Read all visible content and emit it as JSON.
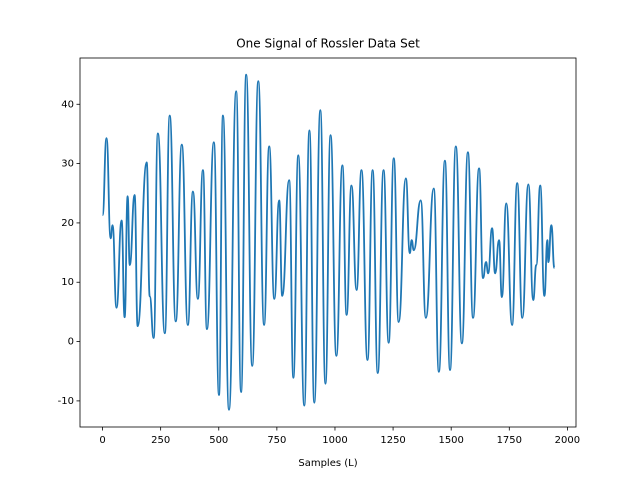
{
  "chart_data": {
    "type": "line",
    "title": "One Signal of Rossler Data Set",
    "x_label": "Samples (L)",
    "xlim": [
      -97,
      2037
    ],
    "xticks": [
      0,
      250,
      500,
      750,
      1000,
      1250,
      1500,
      1750,
      2000
    ],
    "ylim": [
      -14.4,
      47.8
    ],
    "yticks": [
      -10,
      0,
      10,
      20,
      30,
      40
    ],
    "series": [
      {
        "color": "#1f77b4",
        "x": [
          0,
          17,
          35,
          43,
          60,
          82,
          95,
          108,
          117,
          138,
          151,
          190,
          203,
          220,
          238,
          268,
          289,
          315,
          341,
          367,
          389,
          410,
          432,
          449,
          479,
          501,
          518,
          544,
          575,
          596,
          618,
          644,
          670,
          695,
          717,
          739,
          760,
          773,
          803,
          821,
          842,
          868,
          890,
          911,
          937,
          959,
          981,
          1006,
          1032,
          1050,
          1071,
          1093,
          1114,
          1140,
          1162,
          1184,
          1209,
          1231,
          1253,
          1274,
          1305,
          1322,
          1330,
          1339,
          1369,
          1391,
          1425,
          1447,
          1473,
          1495,
          1520,
          1546,
          1572,
          1594,
          1620,
          1637,
          1650,
          1659,
          1676,
          1689,
          1706,
          1718,
          1737,
          1762,
          1784,
          1806,
          1832,
          1853,
          1866,
          1883,
          1901,
          1914,
          1918,
          1931,
          1944
        ],
        "values": [
          21.3,
          34.3,
          17.4,
          19.6,
          5.7,
          20.4,
          4.1,
          24.5,
          12.9,
          24.7,
          2.6,
          30.2,
          7.6,
          0.6,
          35.1,
          1.4,
          38.1,
          3.4,
          33.2,
          2.8,
          25.3,
          7.2,
          28.9,
          2.1,
          33.6,
          -9,
          38.1,
          -11.5,
          42.2,
          -8.5,
          45,
          -4.1,
          43.9,
          2.8,
          32.9,
          7.2,
          23.8,
          7.7,
          27.2,
          -6.1,
          31.4,
          -10.8,
          35.6,
          -10.3,
          39,
          -7.1,
          34.8,
          -2.4,
          29.7,
          4.5,
          26.3,
          8.7,
          28.9,
          -3.1,
          28.9,
          -5.3,
          28.9,
          -0.2,
          30.9,
          3.3,
          27.5,
          14.9,
          17.1,
          15.4,
          23.8,
          4,
          25.8,
          -5.1,
          30.5,
          -4.8,
          32.9,
          -0.3,
          31.9,
          4,
          29.2,
          10.7,
          13.4,
          11.5,
          19.1,
          11.5,
          17.1,
          7.5,
          23.3,
          2.8,
          26.7,
          4,
          26.5,
          7,
          12.9,
          26.3,
          7.7,
          17.1,
          13.4,
          19.6,
          12.4
        ]
      }
    ]
  }
}
